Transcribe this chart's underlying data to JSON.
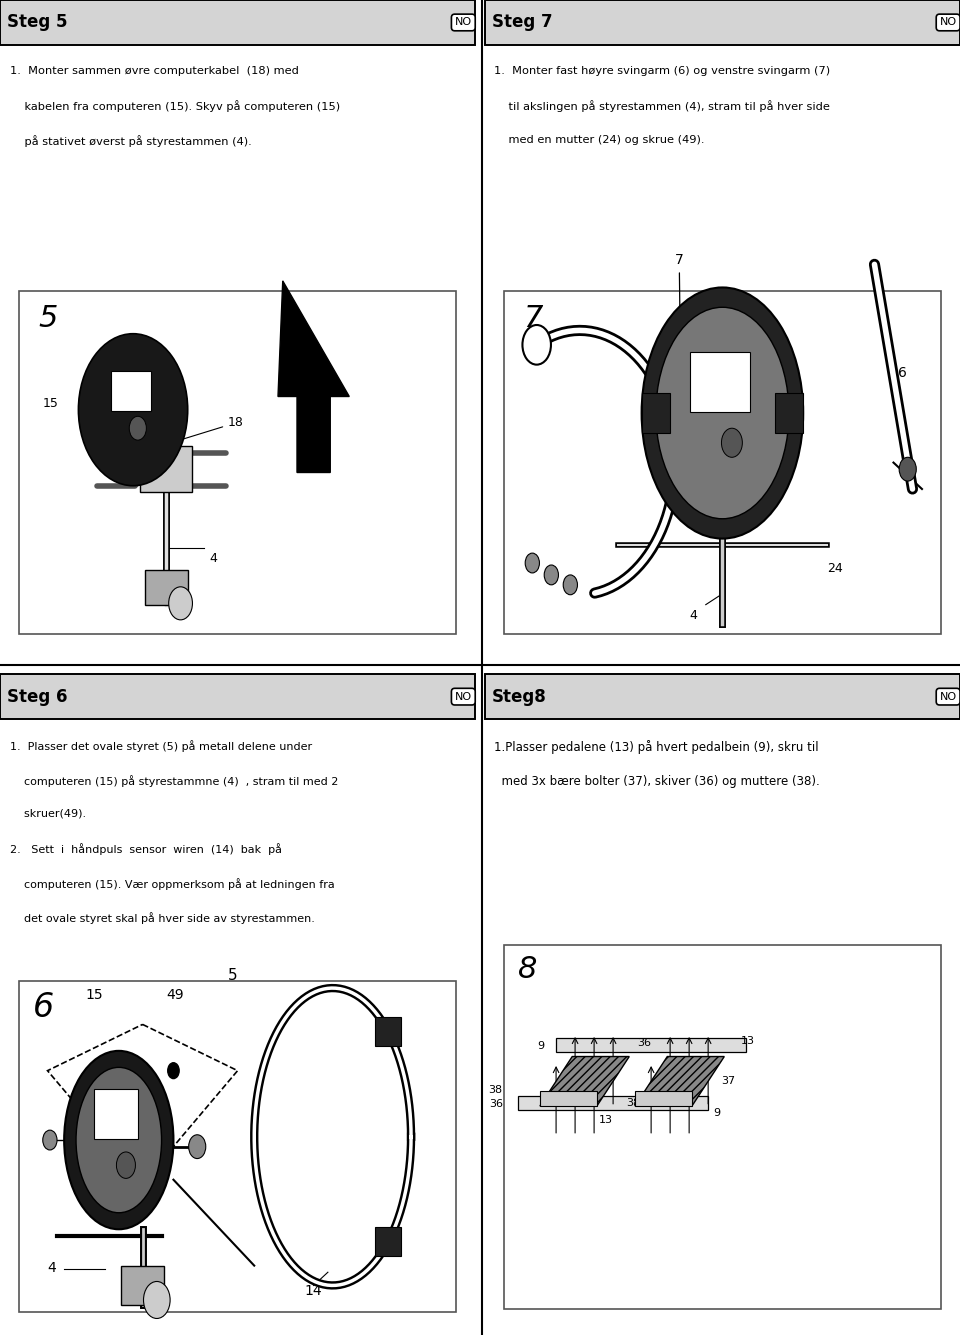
{
  "bg_color": "#ffffff",
  "page_width": 9.6,
  "page_height": 13.35,
  "header_color": "#d4d4d4",
  "border_color": "#444444",
  "sections": {
    "steg5": {
      "title": "Steg 5",
      "text_lines": [
        "1.  Monter sammen øvre computerkabel  (18) med",
        "    kabelen fra computeren (15). Skyv på computeren (15)",
        "    på stativet øverst på styrestammen (4)."
      ]
    },
    "steg7": {
      "title": "Steg 7",
      "text_lines": [
        "1.  Monter fast høyre svingarm (6) og venstre svingarm (7)",
        "    til akslingen på styrestammen (4), stram til på hver side",
        "    med en mutter (24) og skrue (49)."
      ]
    },
    "steg6": {
      "title": "Steg 6",
      "text_lines": [
        "1.  Plasser det ovale styret (5) på metall delene under",
        "    computeren (15) på styrestammne (4)  , stram til med 2",
        "    skruer(49).",
        "2.   Sett  i  håndpuls  sensor  wiren  (14)  bak  på",
        "    computeren (15). Vær oppmerksom på at ledningen fra",
        "    det ovale styret skal på hver side av styrestammen."
      ]
    },
    "steg8": {
      "title": "Steg8",
      "text_lines": [
        "1.Plasser pedalene (13) på hvert pedalbein (9), skru til",
        "  med 3x bære bolter (37), skiver (36) og muttere (38)."
      ]
    }
  }
}
